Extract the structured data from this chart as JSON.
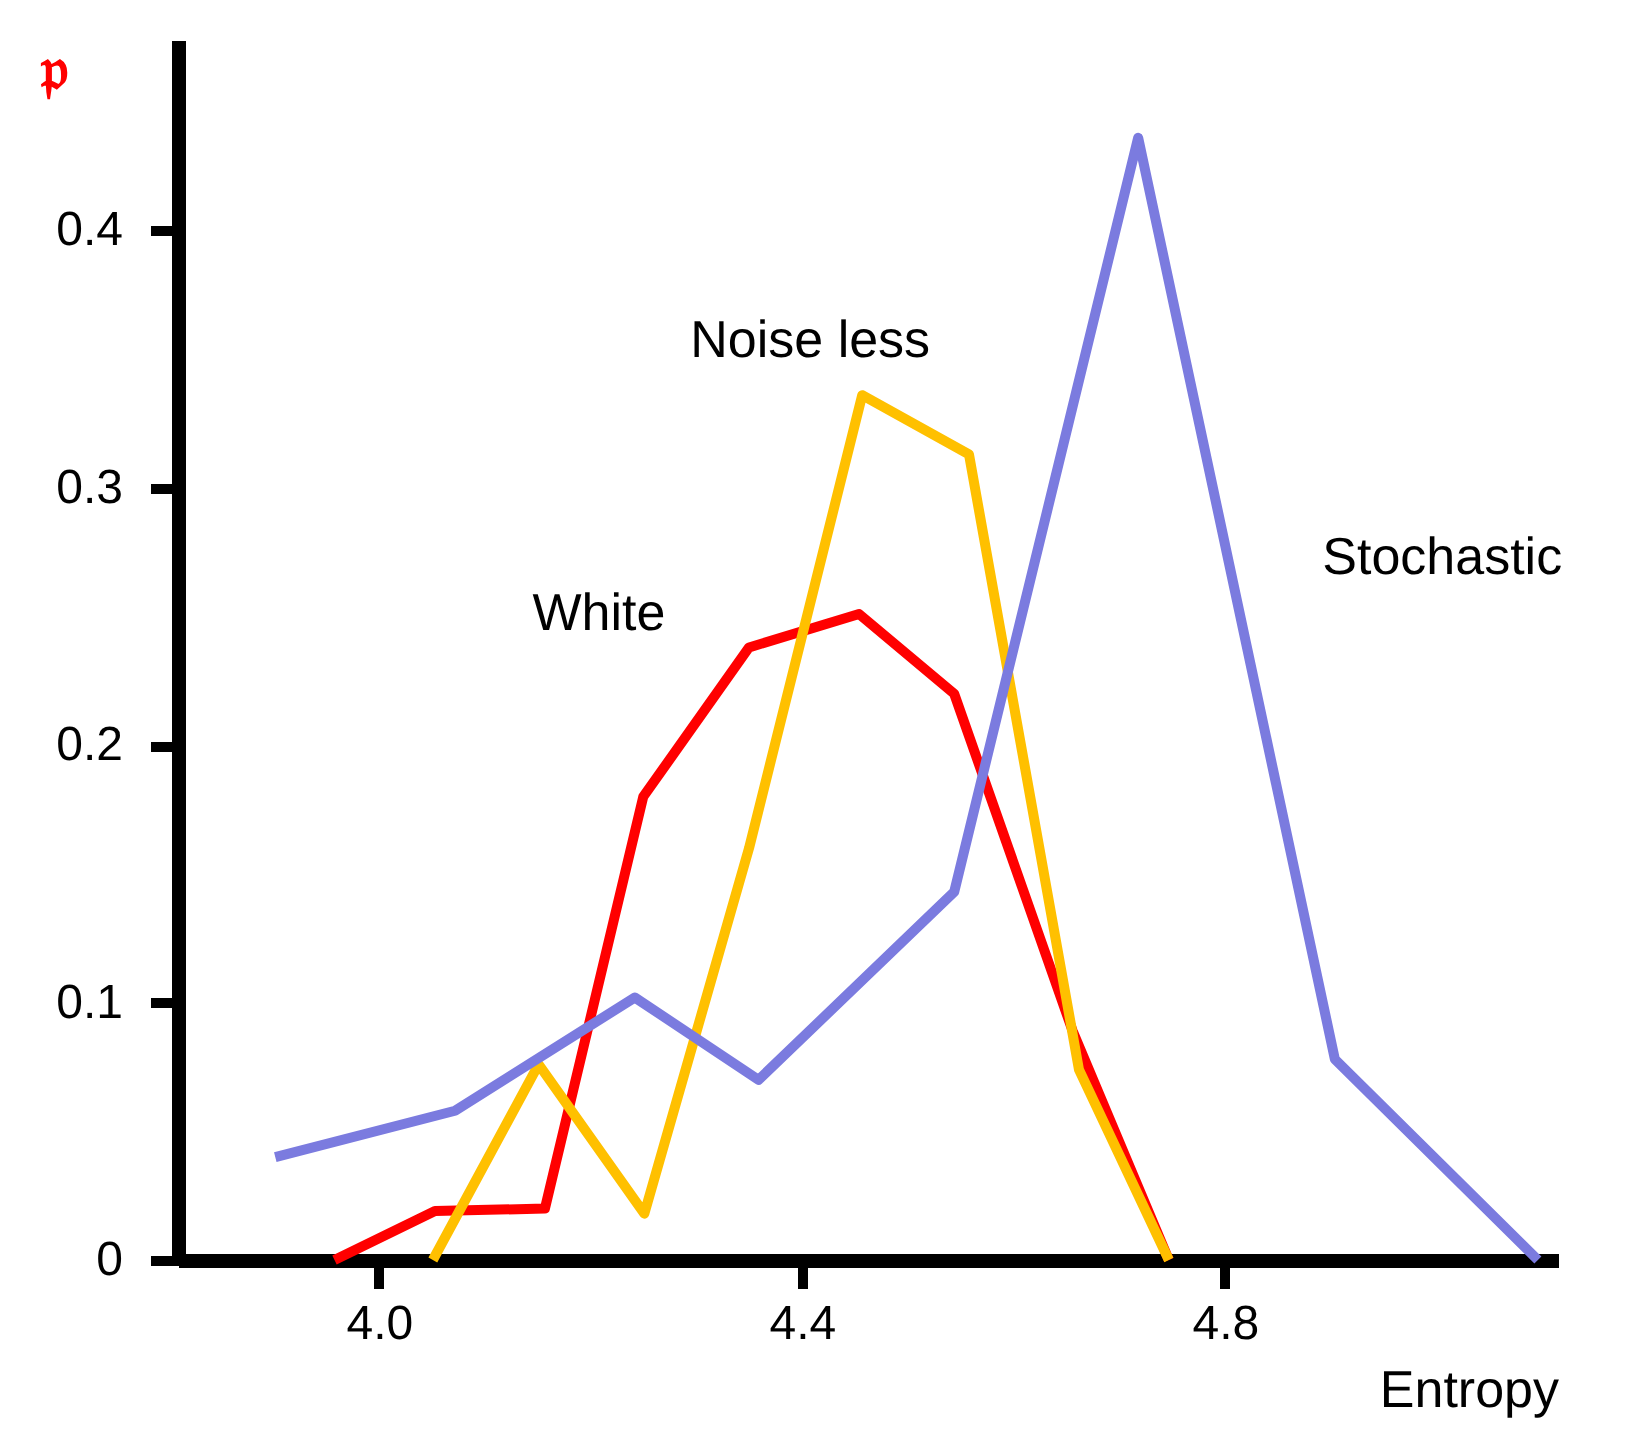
{
  "chart_data": {
    "type": "line",
    "xlabel": "Entropy",
    "ylabel": "𝔭",
    "xlim": [
      3.81,
      5.115
    ],
    "ylim": [
      0,
      0.474
    ],
    "xticks": [
      {
        "value": 4.0,
        "label": "4.0"
      },
      4.4,
      4.8
    ],
    "yticks": [
      0,
      0.1,
      0.2,
      0.3,
      0.4
    ],
    "grid": false,
    "marker": "none",
    "line_style": "solid",
    "series": [
      {
        "name": "White",
        "color": "#ff0000",
        "x": [
          3.958,
          4.053,
          4.157,
          4.25,
          4.35,
          4.454,
          4.544,
          4.656,
          4.747
        ],
        "values": [
          0,
          0.019,
          0.02,
          0.18,
          0.238,
          0.251,
          0.22,
          0.089,
          0
        ]
      },
      {
        "name": "Noise less",
        "color": "#ffc000",
        "x": [
          4.051,
          4.151,
          4.251,
          4.35,
          4.457,
          4.558,
          4.662,
          4.747
        ],
        "values": [
          0,
          0.076,
          0.018,
          0.16,
          0.336,
          0.313,
          0.074,
          0
        ]
      },
      {
        "name": "Stochastic",
        "color": "#7b7bdf",
        "x": [
          3.902,
          4.072,
          4.242,
          4.359,
          4.544,
          4.718,
          4.904,
          5.096
        ],
        "values": [
          0.04,
          0.058,
          0.102,
          0.07,
          0.143,
          0.436,
          0.078,
          0
        ]
      }
    ]
  }
}
